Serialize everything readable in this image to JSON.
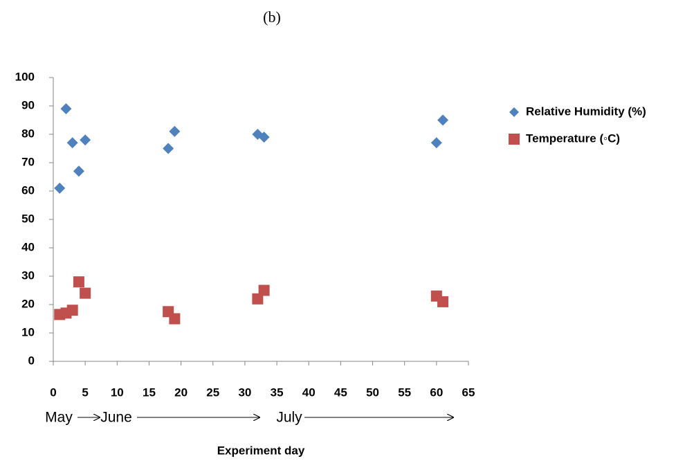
{
  "chart_data": {
    "type": "scatter",
    "title": "(b)",
    "x_label": "Experiment day",
    "annotations": [
      "May",
      "June",
      "July"
    ],
    "series": [
      {
        "name": "Relative Humidity (%)",
        "color": "#4f81bd",
        "marker": "diamond",
        "x": [
          1,
          2,
          3,
          4,
          5,
          18,
          19,
          32,
          33,
          60,
          61
        ],
        "values": [
          61,
          89,
          77,
          67,
          78,
          75,
          81,
          80,
          79,
          77,
          85
        ]
      },
      {
        "name": "Temperature (◦C)",
        "color": "#c0504d",
        "marker": "square",
        "x": [
          1,
          2,
          3,
          4,
          5,
          18,
          19,
          32,
          33,
          60,
          61
        ],
        "values": [
          16.5,
          17,
          18,
          28,
          24,
          17.5,
          15,
          22,
          25,
          23,
          21
        ]
      }
    ],
    "xlim": [
      0,
      65
    ],
    "xticks": [
      0,
      5,
      10,
      15,
      20,
      25,
      30,
      35,
      40,
      45,
      50,
      55,
      60,
      65
    ],
    "ylim": [
      0,
      100
    ],
    "yticks": [
      0,
      10,
      20,
      30,
      40,
      50,
      60,
      70,
      80,
      90,
      100
    ],
    "grid": false,
    "legend": "right"
  }
}
